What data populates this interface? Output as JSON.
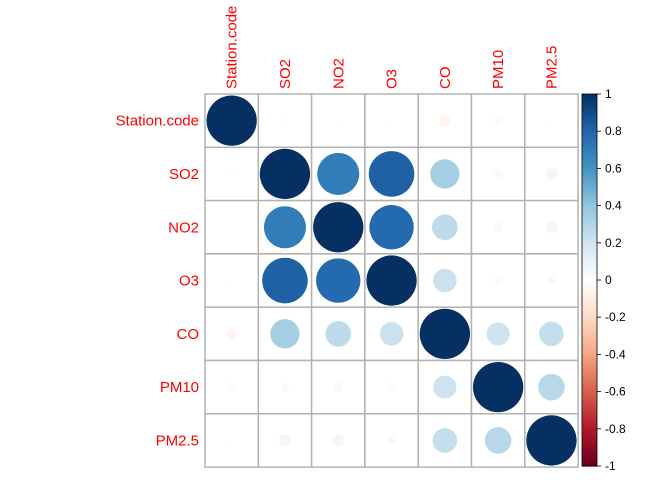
{
  "chart_data": {
    "type": "heatmap",
    "variables": [
      "Station.code",
      "SO2",
      "NO2",
      "O3",
      "CO",
      "PM10",
      "PM2.5"
    ],
    "matrix": [
      [
        1.0,
        -0.01,
        0.01,
        -0.01,
        -0.05,
        0.03,
        -0.01
      ],
      [
        -0.01,
        1.0,
        0.7,
        0.82,
        0.34,
        0.03,
        0.06
      ],
      [
        0.01,
        0.7,
        1.0,
        0.78,
        0.26,
        0.04,
        0.06
      ],
      [
        -0.01,
        0.82,
        0.78,
        1.0,
        0.22,
        0.03,
        0.03
      ],
      [
        -0.05,
        0.34,
        0.26,
        0.22,
        1.0,
        0.21,
        0.24
      ],
      [
        0.03,
        0.03,
        0.04,
        0.03,
        0.21,
        1.0,
        0.28
      ],
      [
        -0.01,
        0.06,
        0.06,
        0.03,
        0.24,
        0.28,
        1.0
      ]
    ],
    "colorbar": {
      "ticks": [
        "1",
        "0.8",
        "0.6",
        "0.4",
        "0.2",
        "0",
        "-0.2",
        "-0.4",
        "-0.6",
        "-0.8",
        "-1"
      ],
      "range": [
        -1,
        1
      ]
    },
    "colors": {
      "negative_end": "#67001F",
      "neutral": "#FFFFFF",
      "positive_end": "#053061",
      "label_color": "#FF0000",
      "grid_color": "#B3B3B3"
    }
  }
}
